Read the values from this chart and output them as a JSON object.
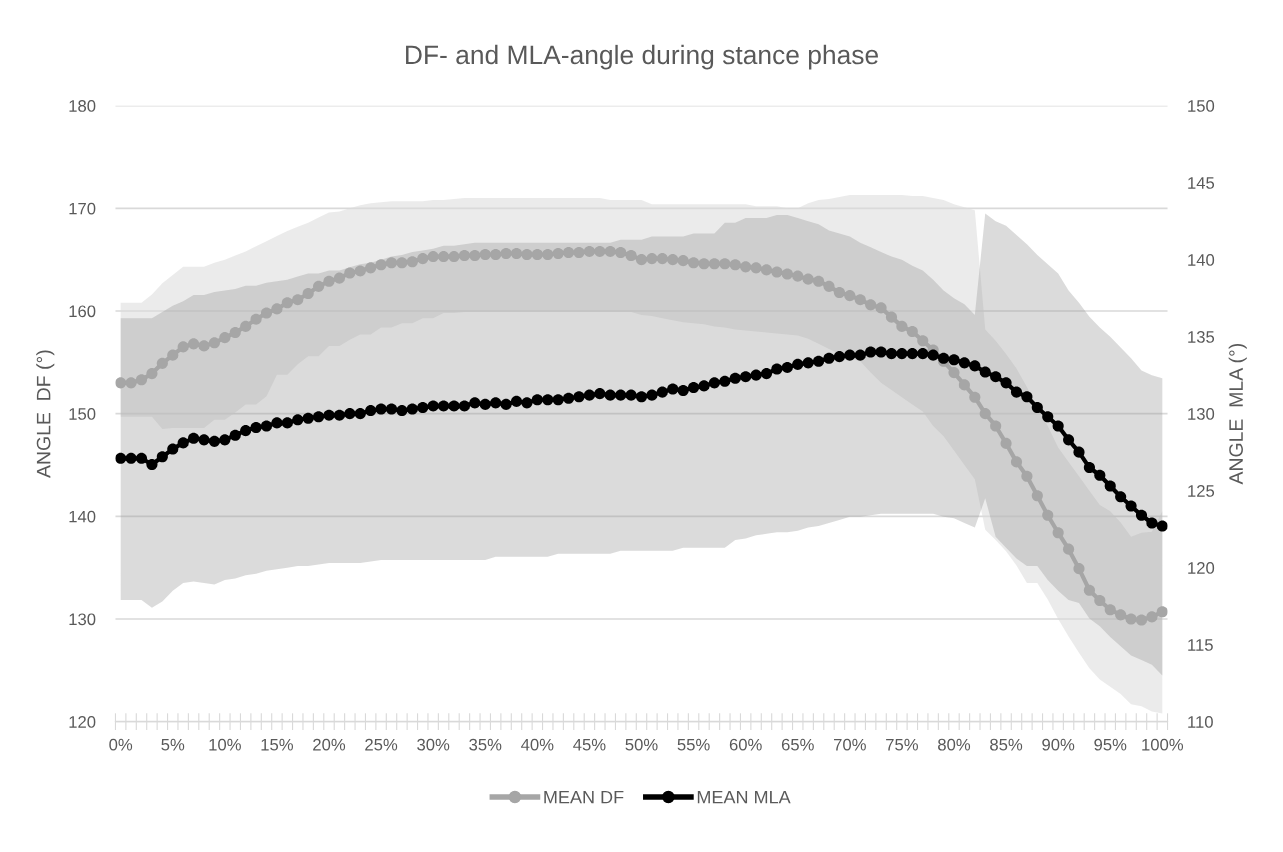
{
  "chart_data": {
    "type": "line",
    "title": "DF- and MLA-angle during stance phase",
    "ylabel": "ANGLE  DF (°)",
    "y2label": "ANGLE  MLA (°)",
    "categories": [
      "0%",
      null,
      null,
      null,
      null,
      "5%",
      null,
      null,
      null,
      null,
      "10%",
      null,
      null,
      null,
      null,
      "15%",
      null,
      null,
      null,
      null,
      "20%",
      null,
      null,
      null,
      null,
      "25%",
      null,
      null,
      null,
      null,
      "30%",
      null,
      null,
      null,
      null,
      "35%",
      null,
      null,
      null,
      null,
      "40%",
      null,
      null,
      null,
      null,
      "45%",
      null,
      null,
      null,
      null,
      "50%",
      null,
      null,
      null,
      null,
      "55%",
      null,
      null,
      null,
      null,
      "60%",
      null,
      null,
      null,
      null,
      "65%",
      null,
      null,
      null,
      null,
      "70%",
      null,
      null,
      null,
      null,
      "75%",
      null,
      null,
      null,
      null,
      "80%",
      null,
      null,
      null,
      null,
      "85%",
      null,
      null,
      null,
      null,
      "90%",
      null,
      null,
      null,
      null,
      "95%",
      null,
      null,
      null,
      null,
      "100%"
    ],
    "series": [
      {
        "name": "MEAN DF",
        "color": "#a6a6a6",
        "values": [
          153.0,
          153.0,
          153.3,
          153.9,
          154.9,
          155.7,
          156.5,
          156.8,
          156.6,
          156.9,
          157.4,
          157.9,
          158.5,
          159.2,
          159.8,
          160.2,
          160.8,
          161.1,
          161.7,
          162.4,
          162.9,
          163.2,
          163.7,
          163.9,
          164.2,
          164.5,
          164.7,
          164.7,
          164.8,
          165.1,
          165.3,
          165.3,
          165.3,
          165.4,
          165.4,
          165.5,
          165.5,
          165.6,
          165.6,
          165.5,
          165.5,
          165.5,
          165.6,
          165.7,
          165.7,
          165.8,
          165.8,
          165.8,
          165.7,
          165.4,
          165.0,
          165.1,
          165.1,
          165.0,
          164.9,
          164.7,
          164.6,
          164.6,
          164.6,
          164.5,
          164.3,
          164.2,
          164.0,
          163.8,
          163.6,
          163.4,
          163.1,
          162.9,
          162.4,
          161.8,
          161.5,
          161.1,
          160.6,
          160.3,
          159.4,
          158.5,
          158.0,
          157.1,
          156.2,
          155.1,
          154.0,
          152.8,
          151.6,
          150.0,
          148.8,
          147.1,
          145.3,
          143.9,
          142.0,
          140.1,
          138.4,
          136.8,
          134.9,
          132.8,
          131.8,
          130.9,
          130.4,
          130.0,
          129.9,
          130.2,
          130.7
        ],
        "lower": [
          149.7,
          149.7,
          149.7,
          149.7,
          148.5,
          148.6,
          148.6,
          148.6,
          148.6,
          149.4,
          149.4,
          150.1,
          150.9,
          150.9,
          151.7,
          153.8,
          153.8,
          154.8,
          155.6,
          155.6,
          156.6,
          156.6,
          157.2,
          157.7,
          157.7,
          158.4,
          158.4,
          158.8,
          158.8,
          159.3,
          159.3,
          159.8,
          159.8,
          159.9,
          159.9,
          159.9,
          159.9,
          159.9,
          159.9,
          159.9,
          159.9,
          159.9,
          159.9,
          159.9,
          159.9,
          159.9,
          159.9,
          159.9,
          159.9,
          159.9,
          159.6,
          159.5,
          159.3,
          159.1,
          158.9,
          158.8,
          158.7,
          158.5,
          158.4,
          158.2,
          158.1,
          158.0,
          157.9,
          157.8,
          157.7,
          157.6,
          157.3,
          156.8,
          156.3,
          155.8,
          155.4,
          155.1,
          154.0,
          153.0,
          152.3,
          151.6,
          150.9,
          150.2,
          148.8,
          147.8,
          146.4,
          145.0,
          143.6,
          138.7,
          137.7,
          136.6,
          135.2,
          133.5,
          133.5,
          131.9,
          130.0,
          128.3,
          126.7,
          125.2,
          124.1,
          123.4,
          122.7,
          121.7,
          121.5,
          121.0,
          120.8
        ],
        "upper": [
          160.8,
          160.8,
          160.8,
          161.6,
          162.7,
          163.5,
          164.3,
          164.3,
          164.3,
          164.7,
          165.0,
          165.4,
          165.8,
          166.3,
          166.8,
          167.3,
          167.8,
          168.2,
          168.6,
          169.1,
          169.6,
          169.7,
          170.0,
          170.3,
          170.5,
          170.6,
          170.7,
          170.7,
          170.7,
          170.7,
          170.8,
          170.8,
          170.9,
          171.0,
          171.0,
          171.0,
          171.0,
          171.0,
          171.0,
          171.0,
          171.0,
          171.0,
          171.0,
          171.0,
          171.0,
          171.0,
          171.0,
          170.8,
          170.8,
          170.8,
          170.8,
          170.4,
          170.4,
          170.4,
          170.4,
          170.4,
          170.4,
          170.4,
          170.4,
          170.4,
          170.4,
          170.2,
          170.2,
          170.2,
          170.0,
          170.0,
          170.5,
          170.8,
          170.9,
          171.1,
          171.3,
          171.3,
          171.3,
          171.3,
          171.3,
          171.3,
          171.2,
          171.2,
          171.0,
          170.8,
          170.4,
          170.1,
          169.8,
          158.2,
          157.1,
          155.8,
          154.4,
          152.6,
          150.5,
          148.8,
          146.7,
          145.3,
          143.9,
          142.5,
          141.1,
          140.5,
          139.4,
          138.0,
          138.4,
          138.5,
          140.5
        ]
      },
      {
        "name": "MEAN MLA",
        "color": "#000000",
        "axis": "y2",
        "values": [
          127.1,
          127.1,
          127.1,
          126.7,
          127.2,
          127.7,
          128.1,
          128.4,
          128.3,
          128.2,
          128.3,
          128.6,
          128.9,
          129.1,
          129.2,
          129.4,
          129.4,
          129.6,
          129.7,
          129.8,
          129.9,
          129.9,
          130.0,
          130.0,
          130.2,
          130.3,
          130.3,
          130.2,
          130.3,
          130.4,
          130.5,
          130.5,
          130.5,
          130.5,
          130.7,
          130.6,
          130.7,
          130.6,
          130.8,
          130.7,
          130.9,
          130.9,
          130.9,
          131.0,
          131.1,
          131.2,
          131.3,
          131.2,
          131.2,
          131.2,
          131.1,
          131.2,
          131.4,
          131.6,
          131.5,
          131.7,
          131.8,
          132.0,
          132.1,
          132.3,
          132.4,
          132.5,
          132.6,
          132.9,
          133.0,
          133.2,
          133.3,
          133.4,
          133.6,
          133.7,
          133.8,
          133.8,
          134.0,
          134.0,
          133.9,
          133.9,
          133.9,
          133.9,
          133.8,
          133.6,
          133.5,
          133.3,
          133.1,
          132.7,
          132.4,
          132.0,
          131.4,
          131.1,
          130.4,
          129.8,
          129.2,
          128.3,
          127.5,
          126.5,
          126.0,
          125.3,
          124.6,
          124.0,
          123.4,
          122.9,
          122.7
        ],
        "lower": [
          117.9,
          117.9,
          117.9,
          117.4,
          117.8,
          118.5,
          119.0,
          119.1,
          119.0,
          118.9,
          119.2,
          119.3,
          119.5,
          119.6,
          119.8,
          119.9,
          120.0,
          120.1,
          120.1,
          120.2,
          120.3,
          120.3,
          120.3,
          120.3,
          120.4,
          120.5,
          120.5,
          120.5,
          120.5,
          120.5,
          120.5,
          120.5,
          120.5,
          120.5,
          120.5,
          120.5,
          120.7,
          120.7,
          120.7,
          120.7,
          120.7,
          120.7,
          120.9,
          120.9,
          120.9,
          120.9,
          120.9,
          120.9,
          121.1,
          121.1,
          121.1,
          121.1,
          121.1,
          121.1,
          121.3,
          121.3,
          121.3,
          121.3,
          121.3,
          121.8,
          121.9,
          122.1,
          122.2,
          122.3,
          122.3,
          122.4,
          122.6,
          122.7,
          122.9,
          123.1,
          123.3,
          123.3,
          123.4,
          123.5,
          123.5,
          123.5,
          123.5,
          123.5,
          123.5,
          123.3,
          123.2,
          122.9,
          122.6,
          124.5,
          122.0,
          121.3,
          120.6,
          120.1,
          120.1,
          119.2,
          118.5,
          117.9,
          117.7,
          116.7,
          116.2,
          115.5,
          114.9,
          114.3,
          114.0,
          113.7,
          113.0
        ],
        "upper": [
          136.2,
          136.2,
          136.2,
          136.2,
          136.6,
          137.0,
          137.3,
          137.7,
          137.7,
          137.9,
          138.0,
          138.1,
          138.3,
          138.3,
          138.5,
          138.6,
          138.7,
          138.9,
          139.1,
          139.1,
          139.3,
          139.3,
          139.5,
          139.7,
          139.8,
          140.0,
          140.2,
          140.3,
          140.5,
          140.6,
          140.7,
          140.9,
          140.9,
          141.0,
          141.1,
          141.1,
          141.1,
          141.1,
          141.1,
          141.1,
          141.1,
          141.1,
          141.1,
          141.1,
          141.1,
          141.1,
          141.1,
          141.1,
          141.3,
          141.3,
          141.3,
          141.5,
          141.5,
          141.5,
          141.5,
          141.7,
          141.7,
          141.7,
          142.4,
          142.4,
          142.7,
          142.7,
          142.7,
          142.9,
          142.9,
          142.7,
          142.5,
          142.3,
          141.9,
          141.7,
          141.5,
          141.1,
          140.8,
          140.5,
          140.2,
          140.0,
          139.6,
          139.3,
          138.7,
          138.0,
          137.5,
          137.1,
          136.4,
          143.0,
          142.5,
          142.2,
          141.6,
          141.0,
          140.3,
          139.7,
          139.1,
          138.0,
          137.2,
          136.3,
          135.6,
          135.0,
          134.3,
          133.6,
          132.8,
          132.5,
          132.3
        ]
      }
    ],
    "ylim": [
      120,
      180
    ],
    "yticks": [
      120,
      130,
      140,
      150,
      160,
      170,
      180
    ],
    "y2lim": [
      110,
      150
    ],
    "y2ticks": [
      110,
      115,
      120,
      125,
      130,
      135,
      140,
      145,
      150
    ],
    "grid": "y",
    "legend": "bottom",
    "marker": "circle",
    "line_style": "solid"
  }
}
